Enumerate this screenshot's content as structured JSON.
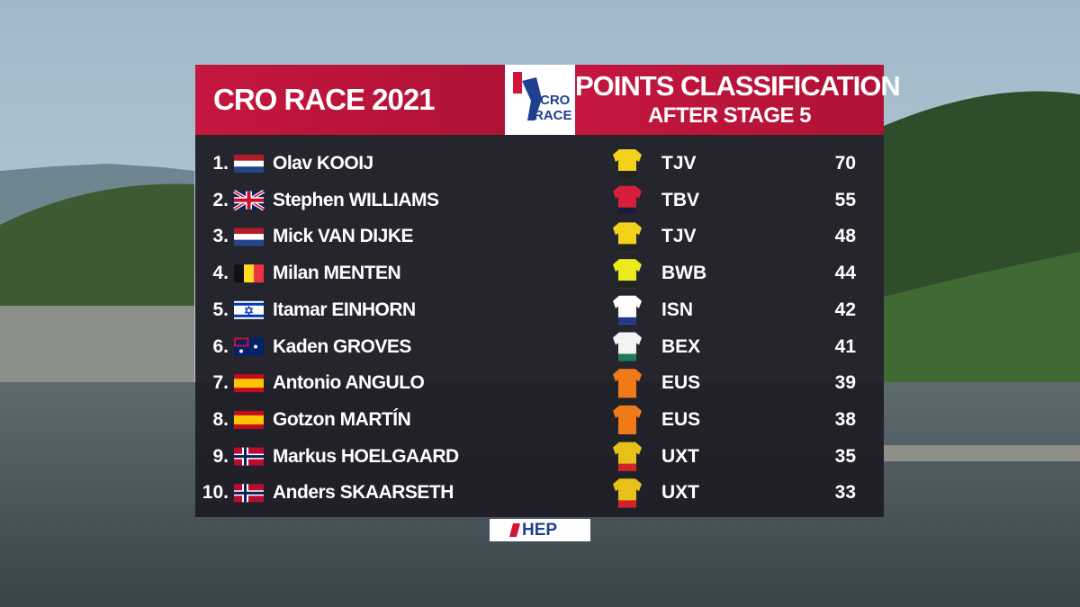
{
  "header": {
    "title": "CRO RACE 2021",
    "classification": "POINTS CLASSIFICATION",
    "subtitle": "AFTER STAGE 5",
    "logo_top": "CRO",
    "logo_bottom": "RACE"
  },
  "table": {
    "rows": [
      [
        "1.",
        "Olav",
        "KOOIJ",
        "TJV",
        70
      ],
      [
        "2.",
        "Stephen",
        "WILLIAMS",
        "TBV",
        55
      ],
      [
        "3.",
        "Mick",
        "VAN DIJKE",
        "TJV",
        48
      ],
      [
        "4.",
        "Milan",
        "MENTEN",
        "BWB",
        44
      ],
      [
        "5.",
        "Itamar",
        "EINHORN",
        "ISN",
        42
      ],
      [
        "6.",
        "Kaden",
        "GROVES",
        "BEX",
        41
      ],
      [
        "7.",
        "Antonio",
        "ANGULO",
        "EUS",
        39
      ],
      [
        "8.",
        "Gotzon",
        "MARTÍN",
        "EUS",
        38
      ],
      [
        "9.",
        "Markus",
        "HOELGAARD",
        "UXT",
        35
      ],
      [
        "10.",
        "Anders",
        "SKAARSETH",
        "UXT",
        33
      ]
    ]
  },
  "sponsor": "HEP"
}
